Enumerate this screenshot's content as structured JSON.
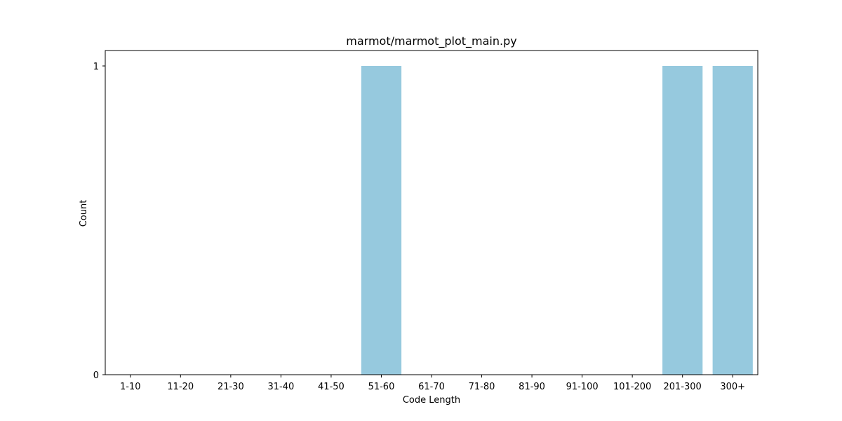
{
  "chart_data": {
    "type": "bar",
    "title": "marmot/marmot_plot_main.py",
    "xlabel": "Code Length",
    "ylabel": "Count",
    "categories": [
      "1-10",
      "11-20",
      "21-30",
      "31-40",
      "41-50",
      "51-60",
      "61-70",
      "71-80",
      "81-90",
      "91-100",
      "101-200",
      "201-300",
      "300+"
    ],
    "values": [
      0,
      0,
      0,
      0,
      0,
      1,
      0,
      0,
      0,
      0,
      0,
      1,
      1
    ],
    "ylim": [
      0,
      1.05
    ],
    "yticks": [
      0,
      1
    ],
    "grid": false,
    "bar_color": "#96c9de"
  }
}
